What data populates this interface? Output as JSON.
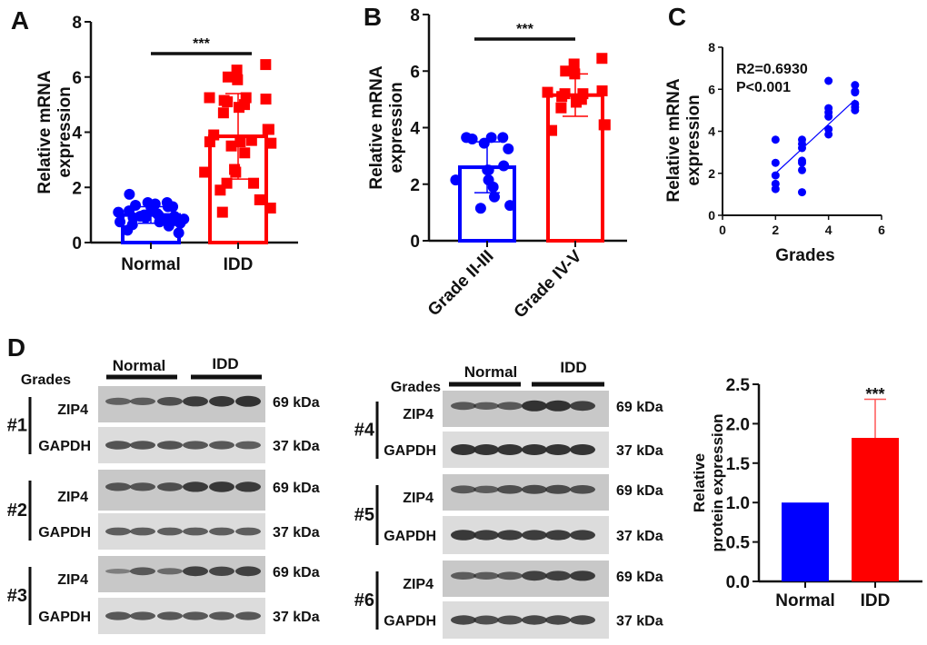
{
  "colors": {
    "normal": "#0000ff",
    "idd": "#ff0000",
    "axis": "#111111",
    "blot_bg": "#d8d8d8",
    "band": "#2a2a2a"
  },
  "chart_data": [
    {
      "panel": "A",
      "type": "scatter-bar",
      "ylabel": [
        "Relative mRNA",
        "expression"
      ],
      "ylim": [
        0,
        8
      ],
      "yticks": [
        0,
        2,
        4,
        6,
        8
      ],
      "categories": [
        "Normal",
        "IDD"
      ],
      "significance": "***",
      "series": [
        {
          "category": "Normal",
          "mean": 1.0,
          "sd": 0.3,
          "marker": "circle",
          "values": [
            1.75,
            1.45,
            1.4,
            1.45,
            1.35,
            1.3,
            1.3,
            1.25,
            1.25,
            1.2,
            1.1,
            1.05,
            1.0,
            1.0,
            0.95,
            0.95,
            0.9,
            0.9,
            0.85,
            0.85,
            0.8,
            0.8,
            0.75,
            0.75,
            0.7,
            0.65,
            0.6,
            0.45,
            0.35,
            1.15
          ]
        },
        {
          "category": "IDD",
          "mean": 3.85,
          "sd": 1.55,
          "marker": "square",
          "values": [
            6.45,
            6.25,
            6.0,
            5.9,
            5.25,
            5.2,
            5.15,
            5.1,
            5.25,
            5.0,
            4.9,
            4.7,
            4.1,
            4.1,
            3.9,
            3.7,
            3.65,
            3.6,
            3.65,
            3.5,
            3.25,
            2.65,
            2.55,
            2.55,
            2.15,
            2.15,
            1.9,
            1.55,
            1.25,
            1.1
          ]
        }
      ]
    },
    {
      "panel": "B",
      "type": "scatter-bar",
      "ylabel": [
        "Relative mRNA",
        "expression"
      ],
      "ylim": [
        0,
        8
      ],
      "yticks": [
        0,
        2,
        4,
        6,
        8
      ],
      "categories": [
        "Grade II-III",
        "Grade IV-V"
      ],
      "significance": "***",
      "series": [
        {
          "category": "Grade II-III",
          "mean": 2.6,
          "sd": 0.9,
          "marker": "circle",
          "values": [
            3.65,
            3.65,
            3.65,
            3.45,
            3.6,
            3.25,
            2.65,
            2.5,
            2.5,
            2.15,
            2.15,
            1.9,
            1.55,
            1.15,
            1.25
          ]
        },
        {
          "category": "Grade IV-V",
          "mean": 5.15,
          "sd": 0.75,
          "marker": "square",
          "values": [
            6.45,
            6.25,
            6.0,
            5.9,
            5.25,
            5.3,
            5.1,
            5.2,
            5.2,
            5.0,
            4.9,
            4.7,
            4.1,
            4.1,
            3.9
          ]
        }
      ]
    },
    {
      "panel": "C",
      "type": "scatter",
      "xlabel": "Grades",
      "ylabel": [
        "Relative mRNA",
        "expression"
      ],
      "xlim": [
        0,
        6
      ],
      "xticks": [
        0,
        2,
        4,
        6
      ],
      "ylim": [
        0,
        8
      ],
      "yticks": [
        0,
        2,
        4,
        6,
        8
      ],
      "annotations": [
        "R2=0.6930",
        "P<0.001"
      ],
      "points": [
        [
          2,
          3.6
        ],
        [
          2,
          2.5
        ],
        [
          2,
          1.9
        ],
        [
          2,
          1.5
        ],
        [
          2,
          1.25
        ],
        [
          3,
          3.6
        ],
        [
          3,
          3.4
        ],
        [
          3,
          3.2
        ],
        [
          3,
          2.6
        ],
        [
          3,
          2.5
        ],
        [
          3,
          2.15
        ],
        [
          3,
          1.1
        ],
        [
          4,
          6.4
        ],
        [
          4,
          5.1
        ],
        [
          4,
          4.9
        ],
        [
          4,
          4.7
        ],
        [
          4,
          4.1
        ],
        [
          4,
          3.85
        ],
        [
          5,
          6.2
        ],
        [
          5,
          5.9
        ],
        [
          5,
          5.85
        ],
        [
          5,
          5.3
        ],
        [
          5,
          5.15
        ],
        [
          5,
          5.0
        ]
      ],
      "fit_line": [
        [
          2,
          2.0
        ],
        [
          5,
          5.5
        ]
      ]
    },
    {
      "panel": "D",
      "type": "bar",
      "ylabel": [
        "Relative",
        "protein expression"
      ],
      "ylim": [
        0,
        2.5
      ],
      "yticks": [
        "0.0",
        "0.5",
        "1.0",
        "1.5",
        "2.0",
        "2.5"
      ],
      "categories": [
        "Normal",
        "IDD"
      ],
      "values": [
        1.0,
        1.82
      ],
      "error_upper": [
        0,
        2.31
      ],
      "significance": "***"
    }
  ],
  "panel_labels": [
    "A",
    "B",
    "C",
    "D"
  ],
  "blots": {
    "grades_label": "Grades",
    "group_labels": [
      "Normal",
      "IDD"
    ],
    "samples": [
      {
        "id": "#1",
        "zip4": [
          0.5,
          0.55,
          0.7,
          0.9,
          0.95,
          1.0
        ],
        "gapdh": [
          0.7,
          0.7,
          0.7,
          0.65,
          0.65,
          0.6
        ]
      },
      {
        "id": "#2",
        "zip4": [
          0.65,
          0.65,
          0.7,
          0.9,
          0.95,
          0.9
        ],
        "gapdh": [
          0.6,
          0.6,
          0.6,
          0.6,
          0.6,
          0.6
        ]
      },
      {
        "id": "#3",
        "zip4": [
          0.2,
          0.6,
          0.4,
          0.85,
          0.8,
          0.85
        ],
        "gapdh": [
          0.65,
          0.65,
          0.65,
          0.65,
          0.65,
          0.65
        ]
      },
      {
        "id": "#4",
        "zip4": [
          0.6,
          0.55,
          0.6,
          1.0,
          1.0,
          0.85
        ],
        "gapdh": [
          1.0,
          1.0,
          1.0,
          1.0,
          1.0,
          1.0
        ]
      },
      {
        "id": "#5",
        "zip4": [
          0.6,
          0.55,
          0.7,
          0.75,
          0.75,
          0.7
        ],
        "gapdh": [
          0.95,
          0.9,
          0.9,
          0.9,
          0.9,
          0.9
        ]
      },
      {
        "id": "#6",
        "zip4": [
          0.55,
          0.55,
          0.6,
          0.85,
          0.85,
          0.9
        ],
        "gapdh": [
          0.8,
          0.75,
          0.75,
          0.8,
          0.8,
          0.8
        ]
      }
    ],
    "protein_labels": [
      "ZIP4",
      "GAPDH"
    ],
    "kda_labels": [
      "69 kDa",
      "37 kDa"
    ]
  }
}
